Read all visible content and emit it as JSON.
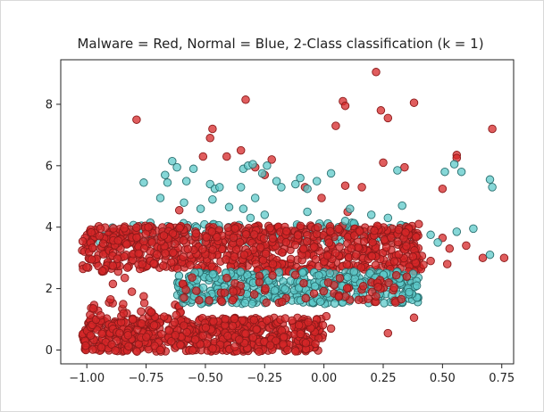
{
  "chart_data": {
    "type": "scatter",
    "title": "Malware = Red, Normal = Blue, 2-Class classification (k = 1)",
    "xlabel": "",
    "ylabel": "",
    "xlim": [
      -1.11,
      0.8
    ],
    "ylim": [
      -0.45,
      9.45
    ],
    "xticks": [
      -1.0,
      -0.75,
      -0.5,
      -0.25,
      0.0,
      0.25,
      0.5,
      0.75
    ],
    "xtick_labels": [
      "−1.00",
      "−0.75",
      "−0.50",
      "−0.25",
      "0.00",
      "0.25",
      "0.50",
      "0.75"
    ],
    "yticks": [
      0,
      2,
      4,
      6,
      8
    ],
    "ytick_labels": [
      "0",
      "2",
      "4",
      "6",
      "8"
    ],
    "grid": false,
    "legend": "none",
    "series": [
      {
        "color": "#d62728",
        "marker_edge": "#8b1a1a",
        "clusters": [
          {
            "x": [
              -1.02,
              0.0
            ],
            "y": [
              -0.05,
              1.05
            ],
            "count": 650
          },
          {
            "x": [
              -1.02,
              -0.6
            ],
            "y": [
              1.05,
              1.55
            ],
            "count": 30
          },
          {
            "x": [
              -1.02,
              0.42
            ],
            "y": [
              2.55,
              4.05
            ],
            "count": 800
          },
          {
            "x": [
              -0.6,
              0.35
            ],
            "y": [
              1.5,
              2.45
            ],
            "count": 70
          }
        ],
        "points": [
          {
            "x": 0.22,
            "y": 9.05
          },
          {
            "x": -0.33,
            "y": 8.15
          },
          {
            "x": 0.08,
            "y": 8.1
          },
          {
            "x": 0.09,
            "y": 7.95
          },
          {
            "x": 0.38,
            "y": 8.05
          },
          {
            "x": -0.79,
            "y": 7.5
          },
          {
            "x": 0.24,
            "y": 7.8
          },
          {
            "x": -0.47,
            "y": 7.2
          },
          {
            "x": 0.05,
            "y": 7.3
          },
          {
            "x": 0.71,
            "y": 7.2
          },
          {
            "x": 0.27,
            "y": 7.55
          },
          {
            "x": -0.48,
            "y": 6.9
          },
          {
            "x": -0.35,
            "y": 6.5
          },
          {
            "x": -0.51,
            "y": 6.3
          },
          {
            "x": 0.56,
            "y": 6.35
          },
          {
            "x": 0.56,
            "y": 6.25
          },
          {
            "x": -0.41,
            "y": 6.3
          },
          {
            "x": -0.22,
            "y": 6.2
          },
          {
            "x": 0.25,
            "y": 6.1
          },
          {
            "x": -0.29,
            "y": 5.95
          },
          {
            "x": 0.34,
            "y": 5.95
          },
          {
            "x": -0.25,
            "y": 5.7
          },
          {
            "x": 0.09,
            "y": 5.35
          },
          {
            "x": 0.16,
            "y": 5.3
          },
          {
            "x": -0.08,
            "y": 5.3
          },
          {
            "x": 0.5,
            "y": 5.25
          },
          {
            "x": -0.01,
            "y": 4.95
          },
          {
            "x": 0.1,
            "y": 4.5
          },
          {
            "x": -0.61,
            "y": 4.55
          },
          {
            "x": 0.4,
            "y": 4.1
          },
          {
            "x": 0.5,
            "y": 3.65
          },
          {
            "x": 0.53,
            "y": 3.3
          },
          {
            "x": 0.6,
            "y": 3.4
          },
          {
            "x": 0.67,
            "y": 3.0
          },
          {
            "x": 0.76,
            "y": 3.0
          },
          {
            "x": 0.52,
            "y": 2.8
          },
          {
            "x": 0.45,
            "y": 2.9
          },
          {
            "x": -0.84,
            "y": 2.35
          },
          {
            "x": -0.89,
            "y": 2.15
          },
          {
            "x": -0.98,
            "y": 2.95
          },
          {
            "x": -0.9,
            "y": 1.65
          },
          {
            "x": -0.81,
            "y": 1.9
          },
          {
            "x": -0.76,
            "y": 1.75
          },
          {
            "x": 0.38,
            "y": 1.05
          },
          {
            "x": 0.27,
            "y": 0.55
          },
          {
            "x": 0.03,
            "y": 0.7
          },
          {
            "x": 0.01,
            "y": 1.1
          },
          {
            "x": 0.22,
            "y": 1.75
          }
        ]
      },
      {
        "color": "#5ec9c9",
        "marker_edge": "#2a6f6f",
        "clusters": [
          {
            "x": [
              -0.62,
              0.4
            ],
            "y": [
              1.5,
              2.55
            ],
            "count": 450
          },
          {
            "x": [
              -0.95,
              0.35
            ],
            "y": [
              3.5,
              4.15
            ],
            "count": 130
          }
        ],
        "points": [
          {
            "x": -0.64,
            "y": 6.15
          },
          {
            "x": -0.67,
            "y": 5.7
          },
          {
            "x": -0.66,
            "y": 5.45
          },
          {
            "x": -0.62,
            "y": 5.95
          },
          {
            "x": -0.58,
            "y": 5.5
          },
          {
            "x": -0.55,
            "y": 5.9
          },
          {
            "x": -0.48,
            "y": 5.4
          },
          {
            "x": -0.46,
            "y": 5.25
          },
          {
            "x": -0.47,
            "y": 4.9
          },
          {
            "x": -0.44,
            "y": 5.3
          },
          {
            "x": -0.34,
            "y": 5.9
          },
          {
            "x": -0.35,
            "y": 5.3
          },
          {
            "x": -0.32,
            "y": 6.0
          },
          {
            "x": -0.3,
            "y": 6.05
          },
          {
            "x": -0.29,
            "y": 4.95
          },
          {
            "x": -0.26,
            "y": 5.75
          },
          {
            "x": -0.24,
            "y": 6.0
          },
          {
            "x": -0.2,
            "y": 5.5
          },
          {
            "x": -0.18,
            "y": 5.3
          },
          {
            "x": -0.12,
            "y": 5.4
          },
          {
            "x": -0.1,
            "y": 5.6
          },
          {
            "x": -0.07,
            "y": 5.25
          },
          {
            "x": -0.03,
            "y": 5.5
          },
          {
            "x": 0.03,
            "y": 5.75
          },
          {
            "x": -0.76,
            "y": 5.45
          },
          {
            "x": -0.69,
            "y": 4.95
          },
          {
            "x": -0.59,
            "y": 4.8
          },
          {
            "x": -0.52,
            "y": 4.6
          },
          {
            "x": -0.4,
            "y": 4.65
          },
          {
            "x": -0.34,
            "y": 4.6
          },
          {
            "x": -0.31,
            "y": 4.3
          },
          {
            "x": -0.25,
            "y": 4.4
          },
          {
            "x": -0.07,
            "y": 4.5
          },
          {
            "x": 0.09,
            "y": 4.2
          },
          {
            "x": 0.11,
            "y": 4.6
          },
          {
            "x": 0.2,
            "y": 4.4
          },
          {
            "x": 0.27,
            "y": 4.3
          },
          {
            "x": 0.31,
            "y": 5.85
          },
          {
            "x": 0.51,
            "y": 5.8
          },
          {
            "x": 0.55,
            "y": 6.05
          },
          {
            "x": 0.58,
            "y": 5.8
          },
          {
            "x": 0.7,
            "y": 5.55
          },
          {
            "x": 0.71,
            "y": 5.3
          },
          {
            "x": 0.33,
            "y": 4.7
          },
          {
            "x": 0.45,
            "y": 3.75
          },
          {
            "x": 0.48,
            "y": 3.5
          },
          {
            "x": 0.56,
            "y": 3.85
          },
          {
            "x": 0.63,
            "y": 3.95
          },
          {
            "x": 0.7,
            "y": 3.1
          }
        ]
      }
    ]
  }
}
